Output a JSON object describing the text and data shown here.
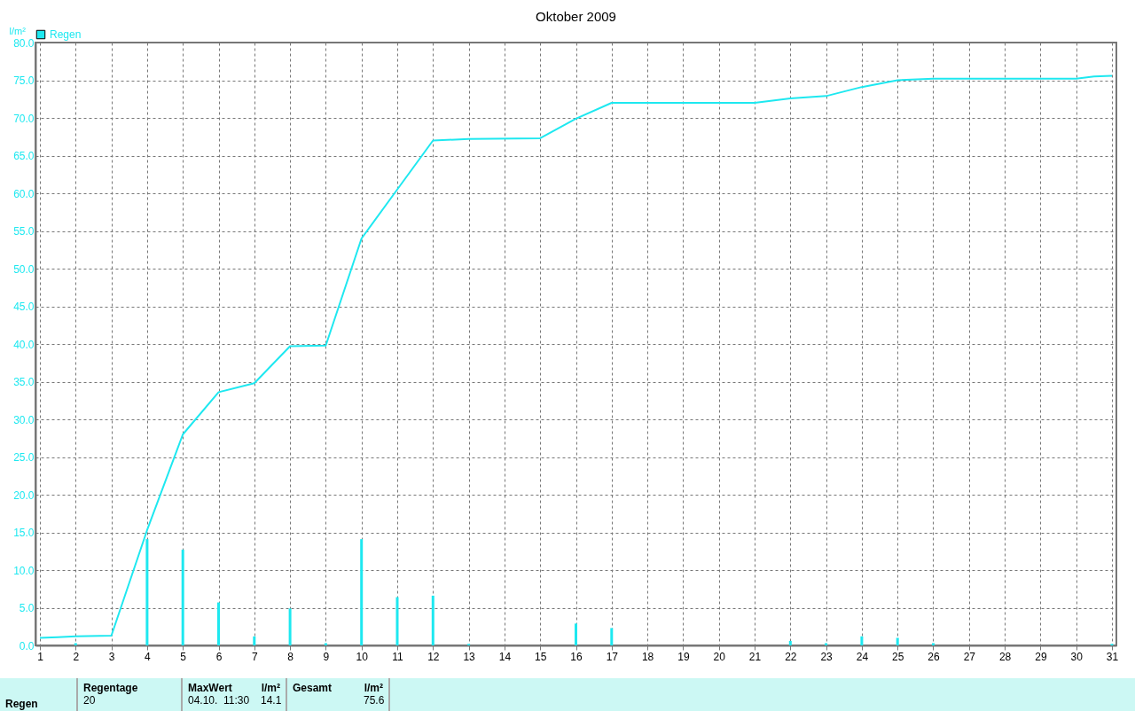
{
  "chart_data": {
    "type": "bar",
    "title": "Oktober 2009",
    "ylabel": "l/m²",
    "legend": "top left",
    "grid": true,
    "line_style": "solid",
    "xlim": [
      1,
      31
    ],
    "xticks": [
      1,
      2,
      3,
      4,
      5,
      6,
      7,
      8,
      9,
      10,
      11,
      12,
      13,
      14,
      15,
      16,
      17,
      18,
      19,
      20,
      21,
      22,
      23,
      24,
      25,
      26,
      27,
      28,
      29,
      30,
      31
    ],
    "ylim": [
      0,
      80
    ],
    "yticks": [
      {
        "value": 0,
        "label": "0.0"
      },
      {
        "value": 5,
        "label": "5.0"
      },
      {
        "value": 10,
        "label": "10.0"
      },
      {
        "value": 15,
        "label": "15.0"
      },
      {
        "value": 20,
        "label": "20.0"
      },
      {
        "value": 25,
        "label": "25.0"
      },
      {
        "value": 30,
        "label": "30.0"
      },
      {
        "value": 35,
        "label": "35.0"
      },
      {
        "value": 40,
        "label": "40.0"
      },
      {
        "value": 45,
        "label": "45.0"
      },
      {
        "value": 50,
        "label": "50.0"
      },
      {
        "value": 55,
        "label": "55.0"
      },
      {
        "value": 60,
        "label": "60.0"
      },
      {
        "value": 65,
        "label": "65.0"
      },
      {
        "value": 70,
        "label": "70.0"
      },
      {
        "value": 75,
        "label": "75.0"
      },
      {
        "value": 80,
        "label": "80.0"
      }
    ],
    "series": [
      {
        "name": "Regen",
        "color": "#1ee8f0",
        "x": [
          2,
          4,
          5,
          6,
          7,
          8,
          9,
          10,
          11,
          12,
          13,
          16,
          17,
          22,
          23,
          24,
          25,
          26,
          31
        ],
        "values": [
          0.3,
          14.1,
          12.7,
          5.7,
          1.2,
          4.9,
          0.3,
          14.1,
          6.4,
          6.6,
          0.2,
          2.9,
          2.3,
          0.6,
          0.3,
          1.2,
          1.0,
          0.3,
          0.2
        ]
      },
      {
        "type": "line",
        "color": "#1ee8f0",
        "x": [
          1,
          1.5,
          2,
          3,
          4,
          5,
          6,
          7,
          8,
          9,
          10,
          11,
          12,
          13,
          15,
          16,
          17,
          21,
          22,
          23,
          24,
          25,
          26,
          30,
          30.5,
          31
        ],
        "values": [
          1.0,
          1.1,
          1.2,
          1.3,
          15.3,
          28.0,
          33.6,
          34.8,
          39.7,
          39.8,
          54.0,
          60.5,
          67.0,
          67.2,
          67.3,
          69.9,
          72.0,
          72.0,
          72.6,
          72.9,
          74.1,
          75.0,
          75.2,
          75.2,
          75.5,
          75.6
        ]
      }
    ],
    "annotations": [
      "Regen",
      "Regentage",
      "20",
      "MaxWert",
      "l/m²",
      "04.10.  11:30",
      "14.1",
      "Gesamt",
      "l/m²",
      "75.6"
    ]
  }
}
